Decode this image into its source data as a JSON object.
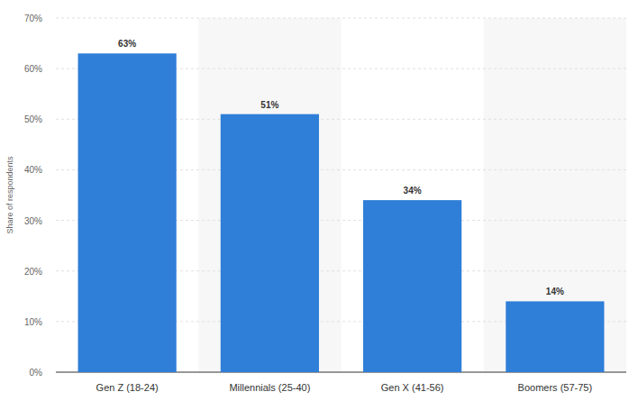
{
  "chart_data": {
    "type": "bar",
    "y_label": "Share of respondents",
    "categories": [
      "Gen Z (18-24)",
      "Millennials (25-40)",
      "Gen X (41-56)",
      "Boomers (57-75)"
    ],
    "values": [
      63,
      51,
      34,
      14
    ],
    "value_labels": [
      "63%",
      "51%",
      "34%",
      "14%"
    ],
    "color": "#2f7ed8",
    "ylim": [
      0,
      70
    ],
    "yticks": [
      {
        "value": 0,
        "label": "0%"
      },
      {
        "value": 10,
        "label": "10%"
      },
      {
        "value": 20,
        "label": "20%"
      },
      {
        "value": 30,
        "label": "30%"
      },
      {
        "value": 40,
        "label": "40%"
      },
      {
        "value": 50,
        "label": "50%"
      },
      {
        "value": 60,
        "label": "60%"
      },
      {
        "value": 70,
        "label": "70%"
      }
    ],
    "grid": true,
    "data_labels": true
  }
}
